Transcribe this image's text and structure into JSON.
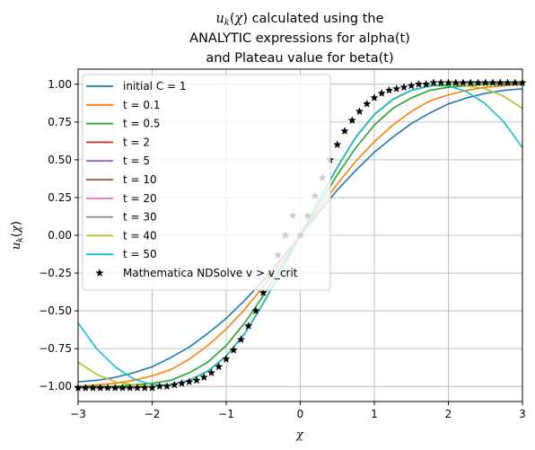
{
  "chart_data": {
    "type": "line",
    "title_lines": [
      "u_k(χ) calculated using the",
      "ANALYTIC expressions for alpha(t)",
      "and Plateau value for beta(t)"
    ],
    "xlabel": "χ",
    "ylabel": "u_k(χ)",
    "xlim": [
      -3,
      3
    ],
    "ylim": [
      -1.1,
      1.1
    ],
    "x_ticks": [
      "−3",
      "−2",
      "−1",
      "0",
      "1",
      "2",
      "3"
    ],
    "y_ticks": [
      "−1.00",
      "−0.75",
      "−0.50",
      "−0.25",
      "0.00",
      "0.25",
      "0.50",
      "0.75",
      "1.00"
    ],
    "grid": true,
    "legend_position": "upper-left",
    "x": [
      -3.0,
      -2.75,
      -2.5,
      -2.25,
      -2.0,
      -1.75,
      -1.5,
      -1.25,
      -1.0,
      -0.75,
      -0.5,
      -0.25,
      0.0,
      0.25,
      0.5,
      0.75,
      1.0,
      1.25,
      1.5,
      1.75,
      2.0,
      2.25,
      2.5,
      2.75,
      3.0
    ],
    "series": [
      {
        "name": "initial C = 1",
        "color": "#1f77b4",
        "values": [
          -0.97,
          -0.96,
          -0.94,
          -0.91,
          -0.87,
          -0.81,
          -0.74,
          -0.65,
          -0.55,
          -0.43,
          -0.3,
          -0.15,
          0.0,
          0.15,
          0.3,
          0.43,
          0.55,
          0.65,
          0.74,
          0.81,
          0.87,
          0.91,
          0.94,
          0.96,
          0.97
        ]
      },
      {
        "name": "t = 0.1",
        "color": "#ff7f0e",
        "values": [
          -1.0,
          -0.99,
          -0.98,
          -0.96,
          -0.93,
          -0.89,
          -0.82,
          -0.73,
          -0.62,
          -0.49,
          -0.34,
          -0.17,
          0.0,
          0.17,
          0.34,
          0.49,
          0.62,
          0.73,
          0.82,
          0.89,
          0.93,
          0.96,
          0.98,
          0.99,
          1.0
        ]
      },
      {
        "name": "t = 0.5",
        "color": "#2ca02c",
        "values": [
          -1.0,
          -1.0,
          -1.0,
          -0.99,
          -0.98,
          -0.96,
          -0.91,
          -0.84,
          -0.73,
          -0.58,
          -0.4,
          -0.2,
          0.0,
          0.2,
          0.4,
          0.58,
          0.73,
          0.84,
          0.91,
          0.96,
          0.98,
          0.99,
          1.0,
          1.0,
          1.0
        ]
      },
      {
        "name": "t = 2",
        "color": "#d62728",
        "values": [
          -1.01,
          -1.01,
          -1.01,
          -1.01,
          -1.0,
          -0.99,
          -0.96,
          -0.9,
          -0.8,
          -0.65,
          -0.45,
          -0.23,
          0.0,
          0.23,
          0.45,
          0.65,
          0.8,
          0.9,
          0.96,
          0.99,
          1.0,
          1.01,
          1.01,
          1.01,
          1.01
        ]
      },
      {
        "name": "t = 5",
        "color": "#9467bd",
        "values": [
          -1.01,
          -1.01,
          -1.01,
          -1.01,
          -1.0,
          -0.99,
          -0.96,
          -0.9,
          -0.8,
          -0.65,
          -0.45,
          -0.23,
          0.0,
          0.23,
          0.45,
          0.65,
          0.8,
          0.9,
          0.96,
          0.99,
          1.0,
          1.01,
          1.01,
          1.01,
          1.01
        ]
      },
      {
        "name": "t = 10",
        "color": "#8c564b",
        "values": [
          -1.01,
          -1.01,
          -1.01,
          -1.01,
          -1.0,
          -0.99,
          -0.96,
          -0.9,
          -0.8,
          -0.65,
          -0.45,
          -0.23,
          0.0,
          0.23,
          0.45,
          0.65,
          0.8,
          0.9,
          0.96,
          0.99,
          1.0,
          1.01,
          1.01,
          1.01,
          1.01
        ]
      },
      {
        "name": "t = 20",
        "color": "#e377c2",
        "values": [
          -1.01,
          -1.01,
          -1.01,
          -1.01,
          -1.0,
          -0.99,
          -0.96,
          -0.9,
          -0.8,
          -0.65,
          -0.45,
          -0.23,
          0.0,
          0.23,
          0.45,
          0.65,
          0.8,
          0.9,
          0.96,
          0.99,
          1.0,
          1.01,
          1.01,
          1.01,
          1.01
        ]
      },
      {
        "name": "t = 30",
        "color": "#7f7f7f",
        "values": [
          -1.01,
          -1.01,
          -1.01,
          -1.01,
          -1.0,
          -0.99,
          -0.96,
          -0.9,
          -0.8,
          -0.65,
          -0.45,
          -0.23,
          0.0,
          0.23,
          0.45,
          0.65,
          0.8,
          0.9,
          0.96,
          0.99,
          1.0,
          1.01,
          1.01,
          1.01,
          1.01
        ]
      },
      {
        "name": "t = 40",
        "color": "#bcbd22",
        "values": [
          -0.84,
          -0.92,
          -0.97,
          -0.99,
          -1.0,
          -0.99,
          -0.96,
          -0.9,
          -0.8,
          -0.65,
          -0.45,
          -0.23,
          0.0,
          0.23,
          0.45,
          0.65,
          0.8,
          0.9,
          0.96,
          0.99,
          1.0,
          0.99,
          0.97,
          0.92,
          0.84
        ]
      },
      {
        "name": "t = 50",
        "color": "#17becf",
        "values": [
          -0.58,
          -0.75,
          -0.87,
          -0.95,
          -0.99,
          -0.99,
          -0.96,
          -0.9,
          -0.8,
          -0.65,
          -0.45,
          -0.23,
          0.0,
          0.23,
          0.45,
          0.65,
          0.8,
          0.9,
          0.96,
          0.99,
          0.99,
          0.95,
          0.87,
          0.75,
          0.58
        ]
      }
    ],
    "markers": {
      "name": "Mathematica NDSolve v > v_crit",
      "color": "#000000",
      "x": [
        -3.0,
        -2.9,
        -2.8,
        -2.7,
        -2.6,
        -2.5,
        -2.4,
        -2.3,
        -2.2,
        -2.1,
        -2.0,
        -1.9,
        -1.8,
        -1.7,
        -1.6,
        -1.5,
        -1.4,
        -1.3,
        -1.2,
        -1.1,
        -1.0,
        -0.9,
        -0.8,
        -0.7,
        -0.6,
        -0.5,
        -0.4,
        -0.3,
        -0.2,
        -0.1,
        0.0,
        0.1,
        0.2,
        0.3,
        0.4,
        0.5,
        0.6,
        0.7,
        0.8,
        0.9,
        1.0,
        1.1,
        1.2,
        1.3,
        1.4,
        1.5,
        1.6,
        1.7,
        1.8,
        1.9,
        2.0,
        2.1,
        2.2,
        2.3,
        2.4,
        2.5,
        2.6,
        2.7,
        2.8,
        2.9,
        3.0
      ],
      "y": [
        -1.01,
        -1.01,
        -1.01,
        -1.01,
        -1.01,
        -1.01,
        -1.01,
        -1.01,
        -1.01,
        -1.01,
        -1.01,
        -1.0,
        -1.0,
        -0.99,
        -0.98,
        -0.97,
        -0.96,
        -0.94,
        -0.91,
        -0.87,
        -0.82,
        -0.76,
        -0.69,
        -0.6,
        -0.5,
        -0.38,
        -0.26,
        -0.13,
        0.0,
        0.13,
        0.0,
        0.13,
        0.26,
        0.38,
        0.5,
        0.6,
        0.69,
        0.76,
        0.82,
        0.87,
        0.91,
        0.94,
        0.96,
        0.97,
        0.98,
        0.99,
        1.0,
        1.0,
        1.01,
        1.01,
        1.01,
        1.01,
        1.01,
        1.01,
        1.01,
        1.01,
        1.01,
        1.01,
        1.01,
        1.01,
        1.01
      ]
    },
    "legend_entries": [
      "initial C = 1",
      "t = 0.1",
      "t = 0.5",
      "t = 2",
      "t = 5",
      "t = 10",
      "t = 20",
      "t = 30",
      "t = 40",
      "t = 50",
      "Mathematica NDSolve v > v_crit"
    ]
  }
}
